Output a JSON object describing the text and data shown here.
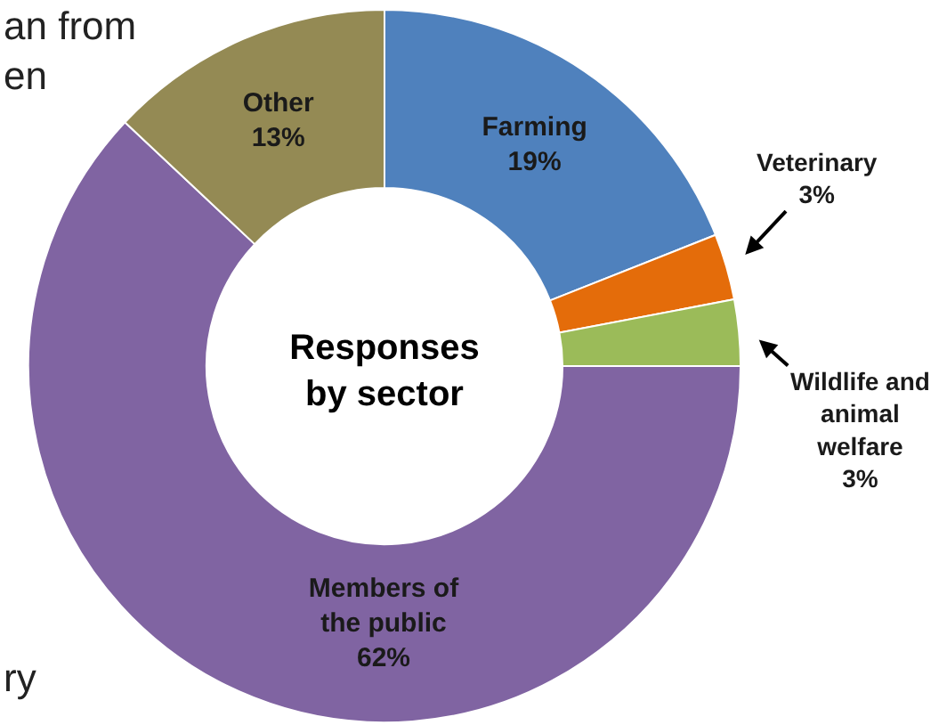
{
  "chart_data": {
    "type": "donut",
    "title": "Responses by sector",
    "categories": [
      "Farming",
      "Veterinary",
      "Wildlife and animal welfare",
      "Members of the public",
      "Other"
    ],
    "values": [
      19,
      3,
      3,
      62,
      13
    ],
    "value_labels": [
      "19%",
      "3%",
      "3%",
      "62%",
      "13%"
    ],
    "colors": [
      "#4f81bd",
      "#e46c0a",
      "#9bbb59",
      "#8064a2",
      "#948a54"
    ],
    "annotations": [
      "an from",
      "en",
      "ry"
    ],
    "legend": false
  }
}
